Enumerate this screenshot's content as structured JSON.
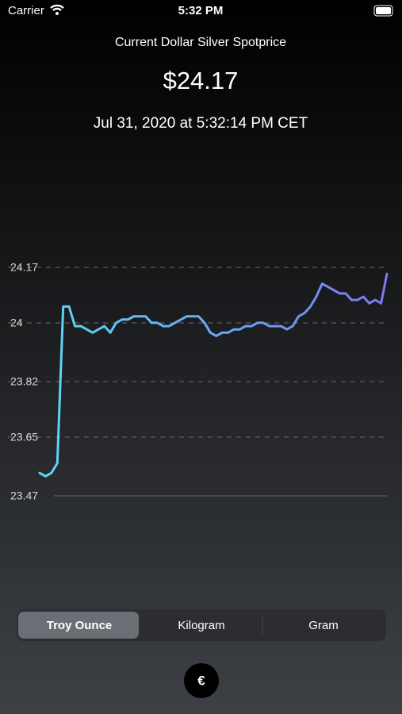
{
  "status_bar": {
    "carrier": "Carrier",
    "time": "5:32 PM"
  },
  "header": {
    "title": "Current Dollar Silver Spotprice",
    "price": "$24.17",
    "timestamp": "Jul 31, 2020 at 5:32:14 PM CET"
  },
  "chart_data": {
    "type": "line",
    "values": [
      23.54,
      23.53,
      23.54,
      23.57,
      24.05,
      24.05,
      23.99,
      23.99,
      23.98,
      23.97,
      23.98,
      23.99,
      23.97,
      24.0,
      24.01,
      24.01,
      24.02,
      24.02,
      24.02,
      24.0,
      24.0,
      23.99,
      23.99,
      24.0,
      24.01,
      24.02,
      24.02,
      24.02,
      24.0,
      23.97,
      23.96,
      23.97,
      23.97,
      23.98,
      23.98,
      23.99,
      23.99,
      24.0,
      24.0,
      23.99,
      23.99,
      23.99,
      23.98,
      23.99,
      24.02,
      24.03,
      24.05,
      24.08,
      24.12,
      24.11,
      24.1,
      24.09,
      24.09,
      24.07,
      24.07,
      24.08,
      24.06,
      24.07,
      24.06,
      24.15
    ],
    "ylim": [
      23.47,
      24.17
    ],
    "yticks": [
      24.17,
      24.0,
      23.82,
      23.65,
      23.47
    ],
    "grid": true,
    "color_start": "#5ad8fa",
    "color_end": "#7d78ee"
  },
  "segmented_control": {
    "options": [
      "Troy Ounce",
      "Kilogram",
      "Gram"
    ],
    "selected": 0
  },
  "currency_button": {
    "label": "€"
  }
}
